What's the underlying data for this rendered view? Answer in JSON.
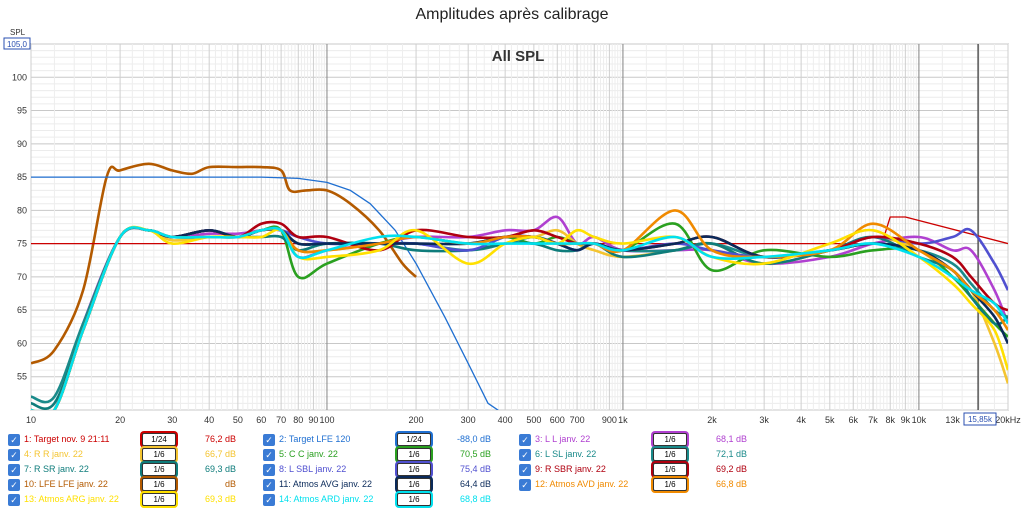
{
  "window": {
    "title": "Amplitudes après calibrage"
  },
  "chart_data": {
    "type": "line",
    "title": "Amplitudes après calibrage",
    "subtitle": "All SPL",
    "ylabel": "SPL",
    "y_top_box": "105,0",
    "x_cursor_box": "15,85k",
    "x_unit": "Hz",
    "xscale": "log",
    "xlim": [
      10,
      20000
    ],
    "ylim": [
      50,
      105
    ],
    "y_ticks": [
      55,
      60,
      65,
      70,
      75,
      80,
      85,
      90,
      95,
      100
    ],
    "x_ticks": [
      {
        "v": 10,
        "l": "10"
      },
      {
        "v": 20,
        "l": "20"
      },
      {
        "v": 30,
        "l": "30"
      },
      {
        "v": 40,
        "l": "40"
      },
      {
        "v": 50,
        "l": "50"
      },
      {
        "v": 60,
        "l": "60"
      },
      {
        "v": 70,
        "l": "70"
      },
      {
        "v": 80,
        "l": "80"
      },
      {
        "v": 90,
        "l": "90"
      },
      {
        "v": 100,
        "l": "100"
      },
      {
        "v": 200,
        "l": "200"
      },
      {
        "v": 300,
        "l": "300"
      },
      {
        "v": 400,
        "l": "400"
      },
      {
        "v": 500,
        "l": "500"
      },
      {
        "v": 600,
        "l": "600"
      },
      {
        "v": 700,
        "l": "700"
      },
      {
        "v": 900,
        "l": "900"
      },
      {
        "v": 1000,
        "l": "1k"
      },
      {
        "v": 2000,
        "l": "2k"
      },
      {
        "v": 3000,
        "l": "3k"
      },
      {
        "v": 4000,
        "l": "4k"
      },
      {
        "v": 5000,
        "l": "5k"
      },
      {
        "v": 6000,
        "l": "6k"
      },
      {
        "v": 7000,
        "l": "7k"
      },
      {
        "v": 8000,
        "l": "8k"
      },
      {
        "v": 9000,
        "l": "9k"
      },
      {
        "v": 10000,
        "l": "10k"
      },
      {
        "v": 13000,
        "l": "13k"
      },
      {
        "v": 20000,
        "l": "20kHz"
      }
    ],
    "series": [
      {
        "name": "1: Target nov. 9 21:11",
        "color": "#cc0000",
        "smoothing": "1/24",
        "level": "76,2 dB",
        "x": [
          10,
          7500,
          8000,
          9000,
          20000
        ],
        "y": [
          75,
          75,
          79,
          79,
          75
        ]
      },
      {
        "name": "2: Target LFE 120",
        "color": "#1f6fd1",
        "smoothing": "1/24",
        "level": "-88,0 dB",
        "x": [
          10,
          60,
          80,
          100,
          120,
          140,
          170,
          200,
          250,
          300,
          350,
          400
        ],
        "y": [
          85,
          85,
          84.8,
          84.2,
          83,
          81,
          77,
          72,
          64,
          57,
          51,
          46
        ]
      },
      {
        "name": "3: L L janv. 22",
        "color": "#b040d0",
        "smoothing": "1/6",
        "level": "68,1 dB",
        "x": [
          10,
          12,
          15,
          20,
          25,
          30,
          40,
          50,
          60,
          70,
          80,
          100,
          150,
          200,
          300,
          400,
          500,
          600,
          700,
          800,
          1000,
          1500,
          2000,
          3000,
          5000,
          7000,
          10000,
          13000,
          15000,
          18000,
          20000
        ],
        "y": [
          50,
          50,
          63,
          76,
          77,
          76,
          76.5,
          76.5,
          77,
          77,
          73,
          74,
          75,
          76,
          76,
          77,
          77,
          79,
          75,
          76,
          74,
          74,
          74,
          72,
          73,
          75,
          76,
          74,
          74,
          68,
          63
        ]
      },
      {
        "name": "4: R R janv. 22",
        "color": "#f4c430",
        "smoothing": "1/6",
        "level": "66,7 dB",
        "x": [
          10,
          12,
          15,
          20,
          25,
          30,
          40,
          50,
          60,
          70,
          80,
          100,
          150,
          200,
          300,
          400,
          500,
          600,
          700,
          800,
          1000,
          1500,
          2000,
          3000,
          5000,
          7000,
          10000,
          13000,
          15000,
          18000,
          20000
        ],
        "y": [
          50,
          50,
          62,
          76,
          77,
          75.5,
          76,
          76,
          77,
          77,
          74,
          74,
          75,
          76,
          75,
          76,
          76,
          77,
          75,
          74,
          73,
          74,
          75,
          72,
          74,
          76,
          74,
          70,
          68,
          60,
          54
        ]
      },
      {
        "name": "5: C C janv. 22",
        "color": "#2aa020",
        "smoothing": "1/6",
        "level": "70,5 dB",
        "x": [
          10,
          12,
          15,
          20,
          25,
          30,
          40,
          50,
          60,
          70,
          80,
          100,
          150,
          200,
          300,
          400,
          500,
          600,
          700,
          800,
          1000,
          1500,
          2000,
          3000,
          5000,
          7000,
          10000,
          13000,
          15000,
          18000,
          20000
        ],
        "y": [
          50,
          50,
          62,
          76,
          77,
          76,
          77,
          76,
          77,
          77,
          70,
          72,
          75,
          76,
          75,
          76,
          75,
          76,
          75,
          75,
          74,
          78,
          71,
          74,
          73,
          74,
          74,
          70,
          67,
          63,
          61
        ]
      },
      {
        "name": "6: L SL janv. 22",
        "color": "#1a8a8a",
        "smoothing": "1/6",
        "level": "72,1 dB",
        "x": [
          10,
          12,
          15,
          20,
          25,
          30,
          40,
          50,
          60,
          70,
          80,
          100,
          150,
          200,
          300,
          400,
          500,
          600,
          700,
          800,
          1000,
          1500,
          2000,
          3000,
          5000,
          7000,
          10000,
          13000,
          15000,
          18000,
          20000
        ],
        "y": [
          52,
          52,
          63,
          76,
          77,
          76,
          77,
          76,
          77,
          77,
          75,
          75,
          75,
          75,
          74,
          75,
          76,
          75,
          74,
          75,
          74,
          74,
          75,
          73,
          74,
          75,
          74,
          72,
          69,
          65,
          64
        ]
      },
      {
        "name": "7: R SR janv. 22",
        "color": "#0e7c7b",
        "smoothing": "1/6",
        "level": "69,3 dB",
        "x": [
          10,
          12,
          15,
          20,
          25,
          30,
          40,
          50,
          60,
          70,
          80,
          100,
          150,
          200,
          300,
          400,
          500,
          600,
          700,
          800,
          1000,
          1500,
          2000,
          3000,
          5000,
          7000,
          10000,
          13000,
          15000,
          18000,
          20000
        ],
        "y": [
          51,
          51,
          62,
          76,
          77,
          76,
          76,
          76,
          76,
          76,
          74,
          75,
          75,
          74,
          74,
          75,
          75,
          74,
          74,
          75,
          73,
          74,
          75,
          72,
          74,
          76,
          73,
          71,
          67,
          63,
          64
        ]
      },
      {
        "name": "8: L SBL janv. 22",
        "color": "#5050d0",
        "smoothing": "1/6",
        "level": "75,4 dB",
        "x": [
          10,
          12,
          15,
          20,
          25,
          30,
          40,
          50,
          60,
          70,
          80,
          100,
          150,
          200,
          300,
          400,
          500,
          600,
          700,
          800,
          1000,
          1500,
          2000,
          3000,
          5000,
          7000,
          10000,
          13000,
          15000,
          18000,
          20000
        ],
        "y": [
          50,
          50,
          62,
          76,
          77,
          76,
          77,
          76,
          77,
          77,
          76,
          75,
          75,
          75,
          74,
          76,
          76,
          75,
          74,
          75,
          74,
          75,
          74,
          73,
          74,
          76,
          75,
          76,
          77,
          72,
          68
        ]
      },
      {
        "name": "9: R SBR janv. 22",
        "color": "#b00010",
        "smoothing": "1/6",
        "level": "69,2 dB",
        "x": [
          10,
          12,
          15,
          20,
          25,
          30,
          40,
          50,
          60,
          70,
          80,
          100,
          150,
          200,
          300,
          400,
          500,
          600,
          700,
          800,
          1000,
          1500,
          2000,
          3000,
          5000,
          7000,
          10000,
          13000,
          15000,
          18000,
          20000
        ],
        "y": [
          50,
          50,
          62,
          76,
          77,
          76,
          77,
          76,
          78,
          78,
          76,
          76,
          74,
          77,
          76,
          76,
          77,
          76,
          75,
          75,
          74,
          75,
          76,
          73,
          74,
          76,
          75,
          73,
          70,
          66,
          65
        ]
      },
      {
        "name": "10: LFE LFE janv. 22",
        "color": "#b35a00",
        "smoothing": "1/6",
        "level": "dB",
        "x": [
          10,
          12,
          15,
          18,
          20,
          25,
          30,
          35,
          40,
          50,
          60,
          70,
          75,
          85,
          100,
          120,
          150,
          180,
          200
        ],
        "y": [
          57,
          59,
          68,
          85,
          86,
          87,
          86,
          85.5,
          86.5,
          86.5,
          86.5,
          86,
          83,
          83,
          83,
          81,
          77,
          72,
          70
        ]
      },
      {
        "name": "11: Atmos AVG janv. 22",
        "color": "#0a2a5a",
        "smoothing": "1/6",
        "level": "64,4 dB",
        "x": [
          10,
          12,
          15,
          20,
          25,
          30,
          40,
          50,
          60,
          70,
          80,
          100,
          150,
          200,
          300,
          400,
          500,
          600,
          700,
          800,
          1000,
          1500,
          2000,
          3000,
          5000,
          7000,
          10000,
          13000,
          15000,
          18000,
          20000
        ],
        "y": [
          50,
          50,
          62,
          76,
          77,
          76,
          77,
          76,
          77,
          77,
          75,
          75,
          75,
          75,
          75,
          76,
          76,
          75,
          74,
          75,
          74,
          75,
          76,
          73,
          74,
          75,
          74,
          71,
          68,
          64,
          60
        ]
      },
      {
        "name": "12: Atmos AVD janv. 22",
        "color": "#f08a00",
        "smoothing": "1/6",
        "level": "66,8 dB",
        "x": [
          10,
          12,
          15,
          20,
          25,
          30,
          40,
          50,
          60,
          70,
          80,
          100,
          150,
          200,
          300,
          400,
          500,
          600,
          700,
          800,
          1000,
          1500,
          2000,
          3000,
          5000,
          7000,
          10000,
          13000,
          15000,
          18000,
          20000
        ],
        "y": [
          50,
          50,
          62,
          76,
          77,
          76,
          76,
          76,
          77,
          77,
          74,
          74,
          75,
          76,
          75,
          76,
          76,
          75,
          75,
          75,
          74,
          80,
          74,
          73,
          74,
          78,
          74,
          71,
          68,
          65,
          62
        ]
      },
      {
        "name": "13: Atmos ARG janv. 22",
        "color": "#ffe000",
        "smoothing": "1/6",
        "level": "69,3 dB",
        "x": [
          10,
          12,
          15,
          20,
          25,
          30,
          40,
          50,
          60,
          70,
          80,
          100,
          150,
          200,
          300,
          400,
          500,
          600,
          700,
          800,
          1000,
          1500,
          2000,
          3000,
          5000,
          7000,
          10000,
          13000,
          15000,
          18000,
          20000
        ],
        "y": [
          50,
          50,
          62,
          76,
          77,
          75,
          76,
          76,
          76,
          77,
          73,
          73,
          74,
          77,
          72,
          75,
          76,
          75,
          77,
          76,
          75,
          76,
          73,
          72,
          75,
          77,
          73,
          69,
          66,
          62,
          56
        ]
      },
      {
        "name": "14: Atmos ARD janv. 22",
        "color": "#00e0ee",
        "smoothing": "1/6",
        "level": "68,8 dB",
        "x": [
          10,
          12,
          15,
          20,
          25,
          30,
          40,
          50,
          60,
          70,
          80,
          100,
          150,
          200,
          300,
          400,
          500,
          600,
          700,
          800,
          1000,
          1500,
          2000,
          3000,
          5000,
          7000,
          10000,
          13000,
          15000,
          18000,
          20000
        ],
        "y": [
          50,
          50,
          62,
          76,
          77,
          76,
          76,
          76,
          77,
          77,
          73,
          74,
          76,
          76,
          75,
          75,
          75,
          75,
          75,
          75,
          74,
          76,
          73,
          73,
          74,
          75,
          73,
          70,
          68,
          66,
          63
        ]
      }
    ]
  }
}
